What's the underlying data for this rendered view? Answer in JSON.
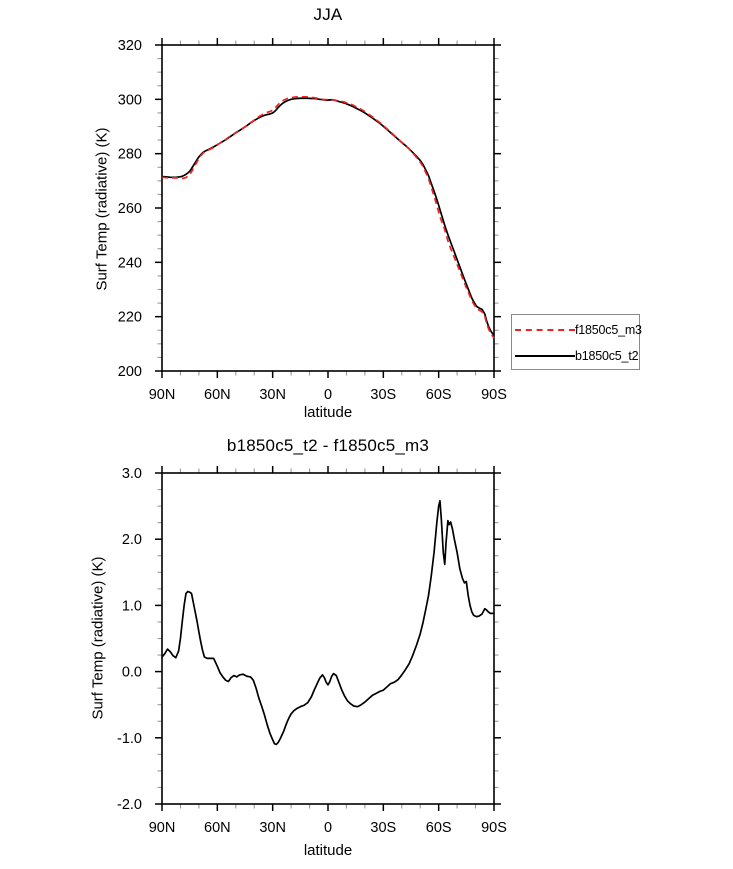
{
  "charts": {
    "top": {
      "title": "JJA",
      "ylabel": "Surf Temp (radiative) (K)",
      "xlabel": "latitude",
      "ytick_labels": [
        "320",
        "300",
        "280",
        "260",
        "240",
        "220",
        "200"
      ],
      "xtick_labels": [
        "90N",
        "60N",
        "30N",
        "0",
        "30S",
        "60S",
        "90S"
      ],
      "legend": {
        "entries": [
          {
            "label": "f1850c5_m3",
            "color": "#ee2222",
            "dashed": true
          },
          {
            "label": "b1850c5_t2",
            "color": "#000000",
            "dashed": false
          }
        ]
      }
    },
    "bottom": {
      "title": "b1850c5_t2 - f1850c5_m3",
      "ylabel": "Surf Temp (radiative) (K)",
      "xlabel": "latitude",
      "ytick_labels": [
        "3.0",
        "2.0",
        "1.0",
        "0.0",
        "-1.0",
        "-2.0"
      ],
      "xtick_labels": [
        "90N",
        "60N",
        "30N",
        "0",
        "30S",
        "60S",
        "90S"
      ]
    }
  },
  "style": {
    "axis_color": "#000000",
    "minor_tick_color": "#999999",
    "red_series_color": "#ee2222",
    "black_series_color": "#000000"
  },
  "chart_data": [
    {
      "type": "line",
      "title": "JJA",
      "xlabel": "latitude",
      "ylabel": "Surf Temp (radiative) (K)",
      "xlim": [
        90,
        -90
      ],
      "ylim": [
        200,
        320
      ],
      "x_major_ticks": [
        90,
        60,
        30,
        0,
        -30,
        -60,
        -90
      ],
      "x_minor_step": 10,
      "y_major_step": 20,
      "y_minor_step": 5,
      "legend_position": "outside-right",
      "x": [
        90,
        88.5,
        87,
        85.5,
        84,
        82.5,
        81,
        80,
        79,
        78,
        77,
        76,
        75,
        74,
        73,
        72,
        71,
        70,
        69,
        68,
        67,
        65.5,
        64,
        62,
        60,
        58.5,
        57,
        55.5,
        54,
        52.5,
        51,
        49.5,
        48,
        46,
        44,
        42,
        40.5,
        39,
        37.5,
        36,
        34.5,
        33,
        31.5,
        30,
        29,
        28,
        27,
        26,
        25,
        24,
        23,
        22,
        21,
        20,
        18.5,
        17,
        15,
        13,
        11,
        9,
        7.5,
        6,
        4.5,
        3,
        2,
        1,
        0,
        -1,
        -2,
        -3,
        -4.5,
        -6,
        -7.5,
        -9,
        -10.5,
        -12,
        -14,
        -16,
        -18,
        -20,
        -22,
        -24,
        -26,
        -28,
        -30,
        -32,
        -34,
        -36,
        -38,
        -40,
        -42,
        -44,
        -46,
        -48,
        -50,
        -51.5,
        -53,
        -54.5,
        -56,
        -57.5,
        -59,
        -60,
        -60.7,
        -61.5,
        -62.5,
        -63.3,
        -64,
        -65,
        -65.7,
        -66.5,
        -67.5,
        -68.5,
        -70,
        -71.5,
        -73,
        -74,
        -75,
        -76,
        -77,
        -78,
        -79,
        -80.5,
        -82,
        -83.5,
        -85,
        -86,
        -87,
        -88,
        -89,
        -90
      ],
      "series": [
        {
          "name": "f1850c5_m3",
          "color": "#ee2222",
          "style": "dashed",
          "values": [
            271.3,
            271.2,
            271.1,
            271.0,
            271.1,
            271.1,
            271.1,
            271.0,
            270.9,
            271.0,
            271.2,
            271.7,
            272.3,
            273.3,
            274.6,
            275.8,
            277.0,
            278.2,
            279.2,
            280.0,
            280.6,
            281.1,
            281.6,
            282.3,
            283.2,
            283.9,
            284.6,
            285.2,
            286.0,
            286.6,
            287.3,
            288.0,
            288.6,
            289.4,
            290.4,
            291.4,
            292.1,
            292.9,
            293.6,
            294.2,
            294.8,
            295.2,
            295.5,
            296.0,
            296.6,
            297.3,
            298.1,
            298.7,
            299.3,
            299.7,
            300.0,
            300.3,
            300.5,
            300.6,
            300.8,
            300.9,
            300.9,
            300.9,
            300.9,
            300.7,
            300.6,
            300.4,
            300.1,
            300.0,
            299.9,
            299.9,
            299.9,
            300.0,
            299.9,
            299.8,
            299.6,
            299.4,
            299.2,
            299.0,
            298.6,
            298.3,
            297.7,
            297.0,
            296.3,
            295.5,
            294.5,
            293.6,
            292.5,
            291.5,
            290.4,
            289.1,
            287.9,
            286.7,
            285.4,
            284.2,
            283.0,
            281.7,
            280.2,
            278.6,
            276.9,
            275.3,
            273.1,
            270.8,
            267.6,
            264.4,
            261.0,
            258.5,
            256.8,
            255.3,
            253.6,
            252.0,
            250.3,
            247.9,
            246.7,
            245.1,
            243.5,
            241.8,
            239.2,
            236.8,
            234.1,
            232.4,
            230.6,
            229.1,
            227.5,
            225.9,
            224.7,
            223.0,
            222.4,
            221.8,
            220.1,
            217.6,
            215.6,
            214.1,
            213.1,
            212.1
          ]
        },
        {
          "name": "b1850c5_t2",
          "color": "#000000",
          "style": "solid",
          "values": [
            271.5,
            271.5,
            271.4,
            271.3,
            271.3,
            271.3,
            271.4,
            271.5,
            271.7,
            272.0,
            272.4,
            272.9,
            273.5,
            274.5,
            275.6,
            276.7,
            277.8,
            278.8,
            279.6,
            280.3,
            280.8,
            281.3,
            281.8,
            282.5,
            283.3,
            283.9,
            284.5,
            285.1,
            285.8,
            286.5,
            287.2,
            287.9,
            288.5,
            289.4,
            290.3,
            291.3,
            292.0,
            292.6,
            293.2,
            293.7,
            294.1,
            294.4,
            294.6,
            295.0,
            295.5,
            296.2,
            297.0,
            297.7,
            298.3,
            298.8,
            299.2,
            299.5,
            299.8,
            300.0,
            300.2,
            300.3,
            300.4,
            300.4,
            300.4,
            300.3,
            300.3,
            300.2,
            300.0,
            299.9,
            299.8,
            299.7,
            299.7,
            299.8,
            299.8,
            299.8,
            299.5,
            299.2,
            298.9,
            298.6,
            298.2,
            297.8,
            297.2,
            296.5,
            295.8,
            295.0,
            294.1,
            293.2,
            292.2,
            291.2,
            290.1,
            288.9,
            287.7,
            286.5,
            285.3,
            284.1,
            283.0,
            281.8,
            280.4,
            279.0,
            277.5,
            276.0,
            274.0,
            271.9,
            269.0,
            266.2,
            263.2,
            261.0,
            259.4,
            257.6,
            255.4,
            253.6,
            252.2,
            250.2,
            248.9,
            247.4,
            245.6,
            243.8,
            241.0,
            238.3,
            235.5,
            233.7,
            232.0,
            230.2,
            228.5,
            226.8,
            225.5,
            223.8,
            223.2,
            222.7,
            221.0,
            218.5,
            216.5,
            215.0,
            214.0,
            213.0
          ]
        }
      ]
    },
    {
      "type": "line",
      "title": "b1850c5_t2 - f1850c5_m3",
      "xlabel": "latitude",
      "ylabel": "Surf Temp (radiative) (K)",
      "xlim": [
        90,
        -90
      ],
      "ylim": [
        -2,
        3
      ],
      "x_major_ticks": [
        90,
        60,
        30,
        0,
        -30,
        -60,
        -90
      ],
      "x_minor_step": 10,
      "y_major_step": 1,
      "y_minor_step": 0.25,
      "legend_position": "none",
      "x": [
        90,
        88.5,
        87,
        85.5,
        84,
        82.5,
        81,
        80,
        79,
        78,
        77,
        76,
        75,
        74,
        73,
        72,
        71,
        70,
        69,
        68,
        67,
        65.5,
        64,
        62,
        60,
        58.5,
        57,
        55.5,
        54,
        52.5,
        51,
        49.5,
        48,
        46,
        44,
        42,
        40.5,
        39,
        37.5,
        36,
        34.5,
        33,
        31.5,
        30,
        29,
        28,
        27,
        26,
        25,
        24,
        23,
        22,
        21,
        20,
        18.5,
        17,
        15,
        13,
        11,
        9,
        7.5,
        6,
        4.5,
        3,
        2,
        1,
        0,
        -1,
        -2,
        -3,
        -4.5,
        -6,
        -7.5,
        -9,
        -10.5,
        -12,
        -14,
        -16,
        -18,
        -20,
        -22,
        -24,
        -26,
        -28,
        -30,
        -32,
        -34,
        -36,
        -38,
        -40,
        -42,
        -44,
        -46,
        -48,
        -50,
        -51.5,
        -53,
        -54.5,
        -56,
        -57.5,
        -59,
        -60,
        -60.7,
        -61.5,
        -62.5,
        -63.3,
        -64,
        -65,
        -65.7,
        -66.5,
        -67.5,
        -68.5,
        -70,
        -71.5,
        -73,
        -74,
        -75,
        -76,
        -77,
        -78,
        -79,
        -80.5,
        -82,
        -83.5,
        -85,
        -86,
        -87,
        -88,
        -89,
        -90
      ],
      "series": [
        {
          "name": "b1850c5_t2 - f1850c5_m3",
          "color": "#000000",
          "style": "solid",
          "values": [
            0.22,
            0.27,
            0.34,
            0.3,
            0.24,
            0.21,
            0.31,
            0.5,
            0.76,
            1.0,
            1.18,
            1.21,
            1.2,
            1.18,
            1.04,
            0.9,
            0.76,
            0.6,
            0.45,
            0.32,
            0.22,
            0.2,
            0.2,
            0.2,
            0.08,
            -0.02,
            -0.08,
            -0.13,
            -0.15,
            -0.09,
            -0.06,
            -0.08,
            -0.05,
            -0.04,
            -0.07,
            -0.08,
            -0.13,
            -0.25,
            -0.4,
            -0.52,
            -0.65,
            -0.8,
            -0.93,
            -1.03,
            -1.09,
            -1.1,
            -1.07,
            -1.02,
            -0.96,
            -0.9,
            -0.82,
            -0.75,
            -0.69,
            -0.64,
            -0.59,
            -0.56,
            -0.53,
            -0.51,
            -0.47,
            -0.38,
            -0.28,
            -0.19,
            -0.1,
            -0.05,
            -0.09,
            -0.16,
            -0.2,
            -0.15,
            -0.07,
            -0.03,
            -0.06,
            -0.17,
            -0.28,
            -0.37,
            -0.44,
            -0.48,
            -0.52,
            -0.53,
            -0.5,
            -0.46,
            -0.41,
            -0.36,
            -0.33,
            -0.3,
            -0.28,
            -0.23,
            -0.18,
            -0.16,
            -0.12,
            -0.05,
            0.03,
            0.12,
            0.25,
            0.4,
            0.57,
            0.74,
            0.94,
            1.15,
            1.45,
            1.8,
            2.25,
            2.5,
            2.58,
            2.28,
            1.8,
            1.62,
            1.95,
            2.28,
            2.22,
            2.26,
            2.15,
            2.0,
            1.8,
            1.55,
            1.4,
            1.34,
            1.36,
            1.15,
            1.0,
            0.9,
            0.85,
            0.83,
            0.84,
            0.87,
            0.95,
            0.93,
            0.9,
            0.88,
            0.88,
            0.88
          ]
        }
      ]
    }
  ]
}
